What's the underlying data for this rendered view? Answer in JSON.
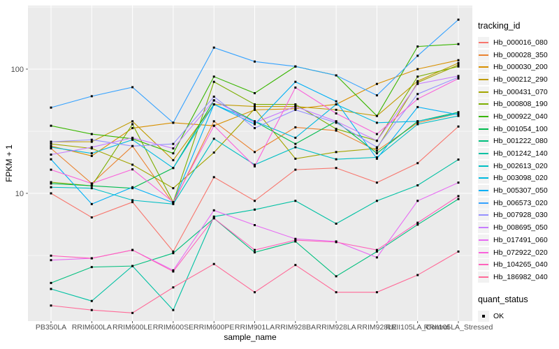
{
  "figure": {
    "y_axis_title": "FPKM + 1",
    "x_axis_title": "sample_name"
  },
  "legend": {
    "tracking_title": "tracking_id",
    "quant_title": "quant_status",
    "quant_items": [
      {
        "label": "OK",
        "shape": "black-square"
      }
    ]
  },
  "colors": {
    "panel_bg": "#EBEBEB",
    "gridline": "#FFFFFF",
    "tick_text": "#4D4D4D",
    "tick_mark": "#333333",
    "point": "#000000"
  },
  "chart_data": {
    "type": "line",
    "xlabel": "sample_name",
    "ylabel": "FPKM + 1",
    "y_scale": "log10",
    "y_ticks": [
      100,
      10
    ],
    "ylim": [
      0.95,
      330
    ],
    "grid": true,
    "legend_position": "right",
    "point_shape": "filled-square",
    "x_categories": [
      "PB350LA",
      "RRIM600LA",
      "RRIM600LE",
      "RRIM600SE",
      "RRIM600PE",
      "RRIM901LA",
      "RRIM928BA",
      "RRIM928LA",
      "RRIM928LE",
      "RRII105LA_Control",
      "RRII105LA_Stressed"
    ],
    "series": [
      {
        "name": "Hb_000016_080",
        "color": "#F8766D",
        "values": [
          10,
          6.4,
          8.5,
          3.4,
          13.5,
          8.7,
          15.5,
          16,
          12.2,
          17.5,
          34.5
        ]
      },
      {
        "name": "Hb_000028_350",
        "color": "#EA8331",
        "values": [
          23,
          12,
          24,
          8.3,
          38,
          21.5,
          34,
          32,
          22,
          37,
          44
        ]
      },
      {
        "name": "Hb_000030_200",
        "color": "#D89000",
        "values": [
          24,
          20,
          33.5,
          37,
          35,
          47,
          48,
          52,
          76,
          100,
          118
        ]
      },
      {
        "name": "Hb_000212_290",
        "color": "#C09B00",
        "values": [
          26,
          26,
          38,
          18.5,
          52,
          50,
          50,
          47,
          42,
          80,
          112
        ]
      },
      {
        "name": "Hb_000431_070",
        "color": "#A3A500",
        "values": [
          25,
          23,
          17,
          11,
          21.3,
          48,
          19,
          21.5,
          23,
          78,
          108
        ]
      },
      {
        "name": "Hb_000808_190",
        "color": "#7CAE00",
        "values": [
          12.3,
          11.5,
          36,
          8.5,
          79,
          52,
          52,
          33,
          26.5,
          87,
          105
        ]
      },
      {
        "name": "Hb_000922_040",
        "color": "#39B600",
        "values": [
          35,
          30,
          27.5,
          21,
          87,
          64,
          105,
          89,
          42,
          152,
          159
        ]
      },
      {
        "name": "Hb_001054_100",
        "color": "#00BB4E",
        "values": [
          12,
          11.5,
          11,
          16,
          56,
          38,
          25,
          38,
          21,
          38,
          45
        ]
      },
      {
        "name": "Hb_001222_080",
        "color": "#00BF7D",
        "values": [
          1.9,
          2.55,
          2.6,
          3.3,
          6.3,
          3.35,
          4.1,
          2.15,
          3.4,
          5.6,
          9.0
        ]
      },
      {
        "name": "Hb_001242_140",
        "color": "#00C1A3",
        "values": [
          1.7,
          1.36,
          2.6,
          1.15,
          6.5,
          7.4,
          8.7,
          5.7,
          8.7,
          11.6,
          18.7
        ]
      },
      {
        "name": "Hb_002613_020",
        "color": "#00BFC4",
        "values": [
          11.2,
          11,
          8.8,
          8.2,
          27.5,
          17,
          23.5,
          18.8,
          19.5,
          36,
          42
        ]
      },
      {
        "name": "Hb_003098_020",
        "color": "#00BAE0",
        "values": [
          23.5,
          21,
          27,
          16,
          52,
          38,
          28,
          52,
          37,
          38,
          44
        ]
      },
      {
        "name": "Hb_005307_050",
        "color": "#00B0F6",
        "values": [
          18.8,
          8.2,
          11.2,
          8.4,
          52,
          36,
          79,
          55,
          19,
          49.5,
          43
        ]
      },
      {
        "name": "Hb_006573_020",
        "color": "#35A2FF",
        "values": [
          49,
          60.5,
          71.5,
          37,
          149,
          115,
          105,
          89,
          61.5,
          128,
          250
        ]
      },
      {
        "name": "Hb_007928_030",
        "color": "#9590FF",
        "values": [
          26,
          27,
          24,
          25,
          60,
          33.5,
          47,
          37,
          23.5,
          63,
          86
        ]
      },
      {
        "name": "Hb_008695_050",
        "color": "#C77CFF",
        "values": [
          20.5,
          23.5,
          28,
          23,
          56,
          37,
          50,
          38,
          26.5,
          76,
          88
        ]
      },
      {
        "name": "Hb_017491_060",
        "color": "#E76BF3",
        "values": [
          2.9,
          3.0,
          3.5,
          2.4,
          7.3,
          5.55,
          4.3,
          4.1,
          3.05,
          8.7,
          12.2
        ]
      },
      {
        "name": "Hb_072922_020",
        "color": "#FA62DB",
        "values": [
          15.5,
          12,
          15.6,
          8.5,
          35,
          16.5,
          71,
          44,
          30,
          57.5,
          84
        ]
      },
      {
        "name": "Hb_104265_040",
        "color": "#FF62BC",
        "values": [
          3.15,
          3.0,
          3.5,
          2.35,
          6.3,
          3.5,
          4.2,
          4.05,
          3.5,
          5.8,
          9.5
        ]
      },
      {
        "name": "Hb_186982_040",
        "color": "#FF6A98",
        "values": [
          1.25,
          1.15,
          1.09,
          1.75,
          2.7,
          1.6,
          2.65,
          1.6,
          1.6,
          2.2,
          3.4
        ]
      }
    ]
  }
}
